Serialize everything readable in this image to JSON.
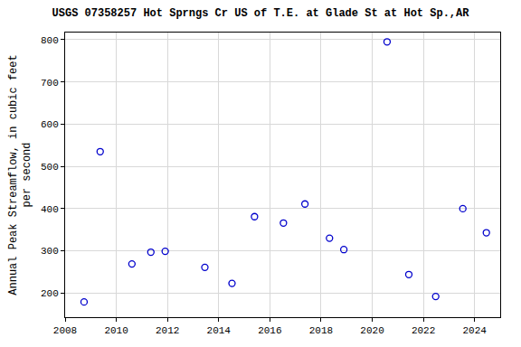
{
  "chart_data": {
    "type": "scatter",
    "title": "USGS 07358257 Hot Sprngs Cr US of T.E. at Glade St at Hot Sp.,AR",
    "y_label": "Annual Peak Streamflow, in cubic feet\nper second",
    "x": [
      2008.74,
      2009.37,
      2010.61,
      2011.35,
      2011.91,
      2013.46,
      2014.52,
      2015.4,
      2016.53,
      2017.37,
      2018.33,
      2018.89,
      2020.58,
      2021.43,
      2022.48,
      2023.54,
      2024.46
    ],
    "values": [
      179,
      535,
      269,
      297,
      299,
      261,
      223,
      381,
      366,
      411,
      330,
      303,
      795,
      244,
      192,
      400,
      343
    ],
    "color": "#0000cc",
    "marker": "circle-open",
    "xlim": [
      2008,
      2025
    ],
    "xticks": [
      2008,
      2010,
      2012,
      2014,
      2016,
      2018,
      2020,
      2022,
      2024
    ],
    "ylim": [
      143,
      817
    ],
    "yticks": [
      200,
      300,
      400,
      500,
      600,
      700,
      800
    ],
    "grid": true
  }
}
